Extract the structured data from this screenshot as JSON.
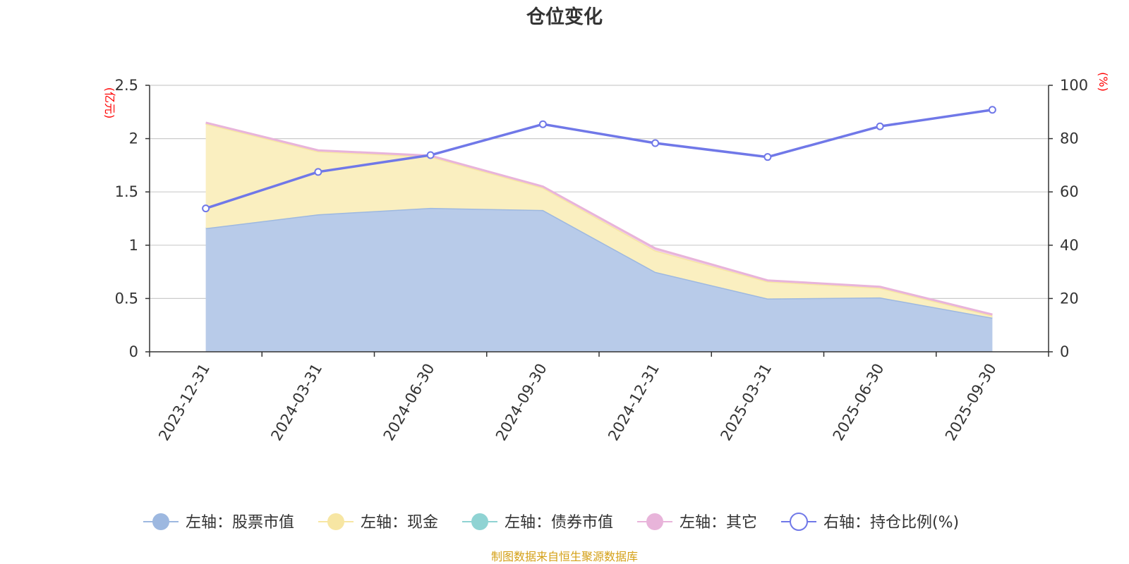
{
  "chart_data": {
    "type": "area",
    "title": "仓位变化",
    "categories": [
      "2023-12-31",
      "2024-03-31",
      "2024-06-30",
      "2024-09-30",
      "2024-12-31",
      "2025-03-31",
      "2025-06-30",
      "2025-09-30"
    ],
    "left_axis": {
      "unit": "(亿元)",
      "ylim": [
        0,
        2.5
      ],
      "ticks": [
        "0",
        "0.5",
        "1",
        "1.5",
        "2",
        "2.5"
      ]
    },
    "right_axis": {
      "unit": "(%)",
      "ylim": [
        0,
        100
      ],
      "ticks": [
        "0",
        "20",
        "40",
        "60",
        "80",
        "100"
      ]
    },
    "series": [
      {
        "name": "左轴：股票市值",
        "axis": "left",
        "stack": true,
        "color": "#9db8e0",
        "fill": "#b8cbe9",
        "values": [
          1.16,
          1.29,
          1.35,
          1.33,
          0.75,
          0.5,
          0.51,
          0.32
        ]
      },
      {
        "name": "左轴：现金",
        "axis": "left",
        "stack": true,
        "color": "#f7e6a3",
        "fill": "#faefc0",
        "values": [
          0.98,
          0.59,
          0.48,
          0.21,
          0.2,
          0.16,
          0.09,
          0.02
        ]
      },
      {
        "name": "左轴：债券市值",
        "axis": "left",
        "stack": true,
        "color": "#8fd3d3",
        "fill": "#b7e4e4",
        "values": [
          0,
          0,
          0,
          0,
          0,
          0,
          0,
          0
        ]
      },
      {
        "name": "左轴：其它",
        "axis": "left",
        "stack": true,
        "color": "#e8b4da",
        "fill": "#f1cfe7",
        "values": [
          0.01,
          0.01,
          0.01,
          0.01,
          0.02,
          0.01,
          0.01,
          0.01
        ]
      },
      {
        "name": "右轴：持仓比例(%)",
        "axis": "right",
        "type": "line",
        "color": "#7078e8",
        "values": [
          53.8,
          67.5,
          73.8,
          85.4,
          78.3,
          73.1,
          84.6,
          90.8
        ]
      }
    ]
  },
  "source": {
    "text": "制图数据来自恒生聚源数据库",
    "color": "#d4a017"
  },
  "colors": {
    "unit": "#ff0000",
    "axis": "#333333",
    "grid": "#cccccc"
  }
}
